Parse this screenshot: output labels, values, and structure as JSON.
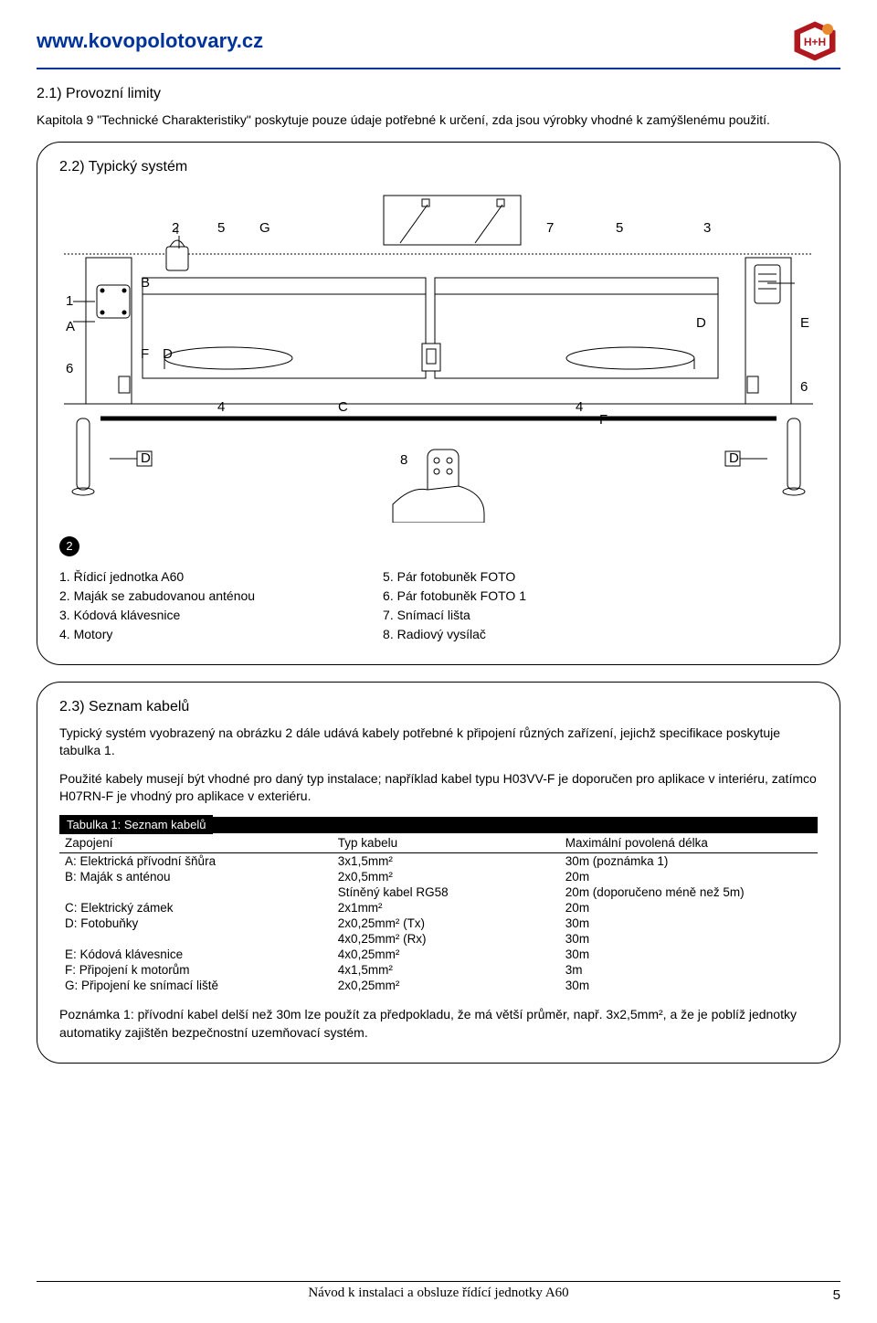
{
  "header": {
    "url": "www.kovopolotovary.cz",
    "logo_colors": {
      "outer": "#b01820",
      "inner": "#ffffff",
      "accent": "#ea8a2e"
    }
  },
  "section21": {
    "title": "2.1) Provozní limity",
    "text": "Kapitola 9 \"Technické Charakteristiky\" poskytuje pouze údaje potřebné k určení, zda jsou výrobky vhodné k zamýšlenému použití."
  },
  "section22": {
    "title": "2.2) Typický systém",
    "fig_badge": "2",
    "labels": {
      "n1": "1",
      "n2": "2",
      "n3": "3",
      "n4": "4",
      "n5": "5",
      "n6": "6",
      "n7": "7",
      "n8": "8",
      "A": "A",
      "B": "B",
      "C": "C",
      "D": "D",
      "E": "E",
      "F": "F",
      "G": "G"
    },
    "list_left": [
      "1.  Řídicí jednotka A60",
      "2.  Maják  se zabudovanou anténou",
      "3.  Kódová klávesnice",
      "4.  Motory"
    ],
    "list_right": [
      "5.  Pár fotobuněk FOTO",
      "6.  Pár fotobuněk FOTO 1",
      "7.  Snímací lišta",
      "8.  Radiový vysílač"
    ]
  },
  "section23": {
    "title": "2.3) Seznam kabelů",
    "para1": "Typický systém vyobrazený na obrázku 2 dále udává kabely potřebné k připojení různých zařízení, jejichž specifikace poskytuje tabulka 1.",
    "para2": "Použité kabely musejí být vhodné pro daný typ instalace; například kabel typu H03VV-F je doporučen pro aplikace v interiéru, zatímco H07RN-F je vhodný pro aplikace v exteriéru.",
    "table_title": "Tabulka 1: Seznam kabelů",
    "columns": [
      "Zapojení",
      "Typ kabelu",
      "Maximální povolená délka"
    ],
    "rows": [
      [
        "A: Elektrická přívodní šňůra",
        "3x1,5mm²",
        "30m (poznámka 1)"
      ],
      [
        "B: Maják s anténou",
        "2x0,5mm²",
        "20m"
      ],
      [
        "",
        "Stíněný kabel  RG58",
        "20m (doporučeno méně než 5m)"
      ],
      [
        "C: Elektrický zámek",
        "2x1mm²",
        "20m"
      ],
      [
        "D: Fotobuňky",
        "2x0,25mm² (Tx)",
        "30m"
      ],
      [
        "",
        "4x0,25mm² (Rx)",
        "30m"
      ],
      [
        "E: Kódová klávesnice",
        "4x0,25mm²",
        "30m"
      ],
      [
        "F:  Připojení k motorům",
        "4x1,5mm²",
        "3m"
      ],
      [
        "G: Připojení ke snímací liště",
        "2x0,25mm²",
        "30m"
      ]
    ],
    "note": "Poznámka 1: přívodní kabel delší než 30m lze použít za předpokladu, že má větší průměr, např. 3x2,5mm², a že je poblíž jednotky automatiky zajištěn bezpečnostní uzemňovací systém."
  },
  "footer": {
    "text": "Návod k instalaci a obsluze řídící jednotky A60",
    "page": "5"
  },
  "diagram_style": {
    "stroke": "#000000",
    "fill": "#ffffff",
    "stroke_width": 1,
    "font_size": 15
  }
}
